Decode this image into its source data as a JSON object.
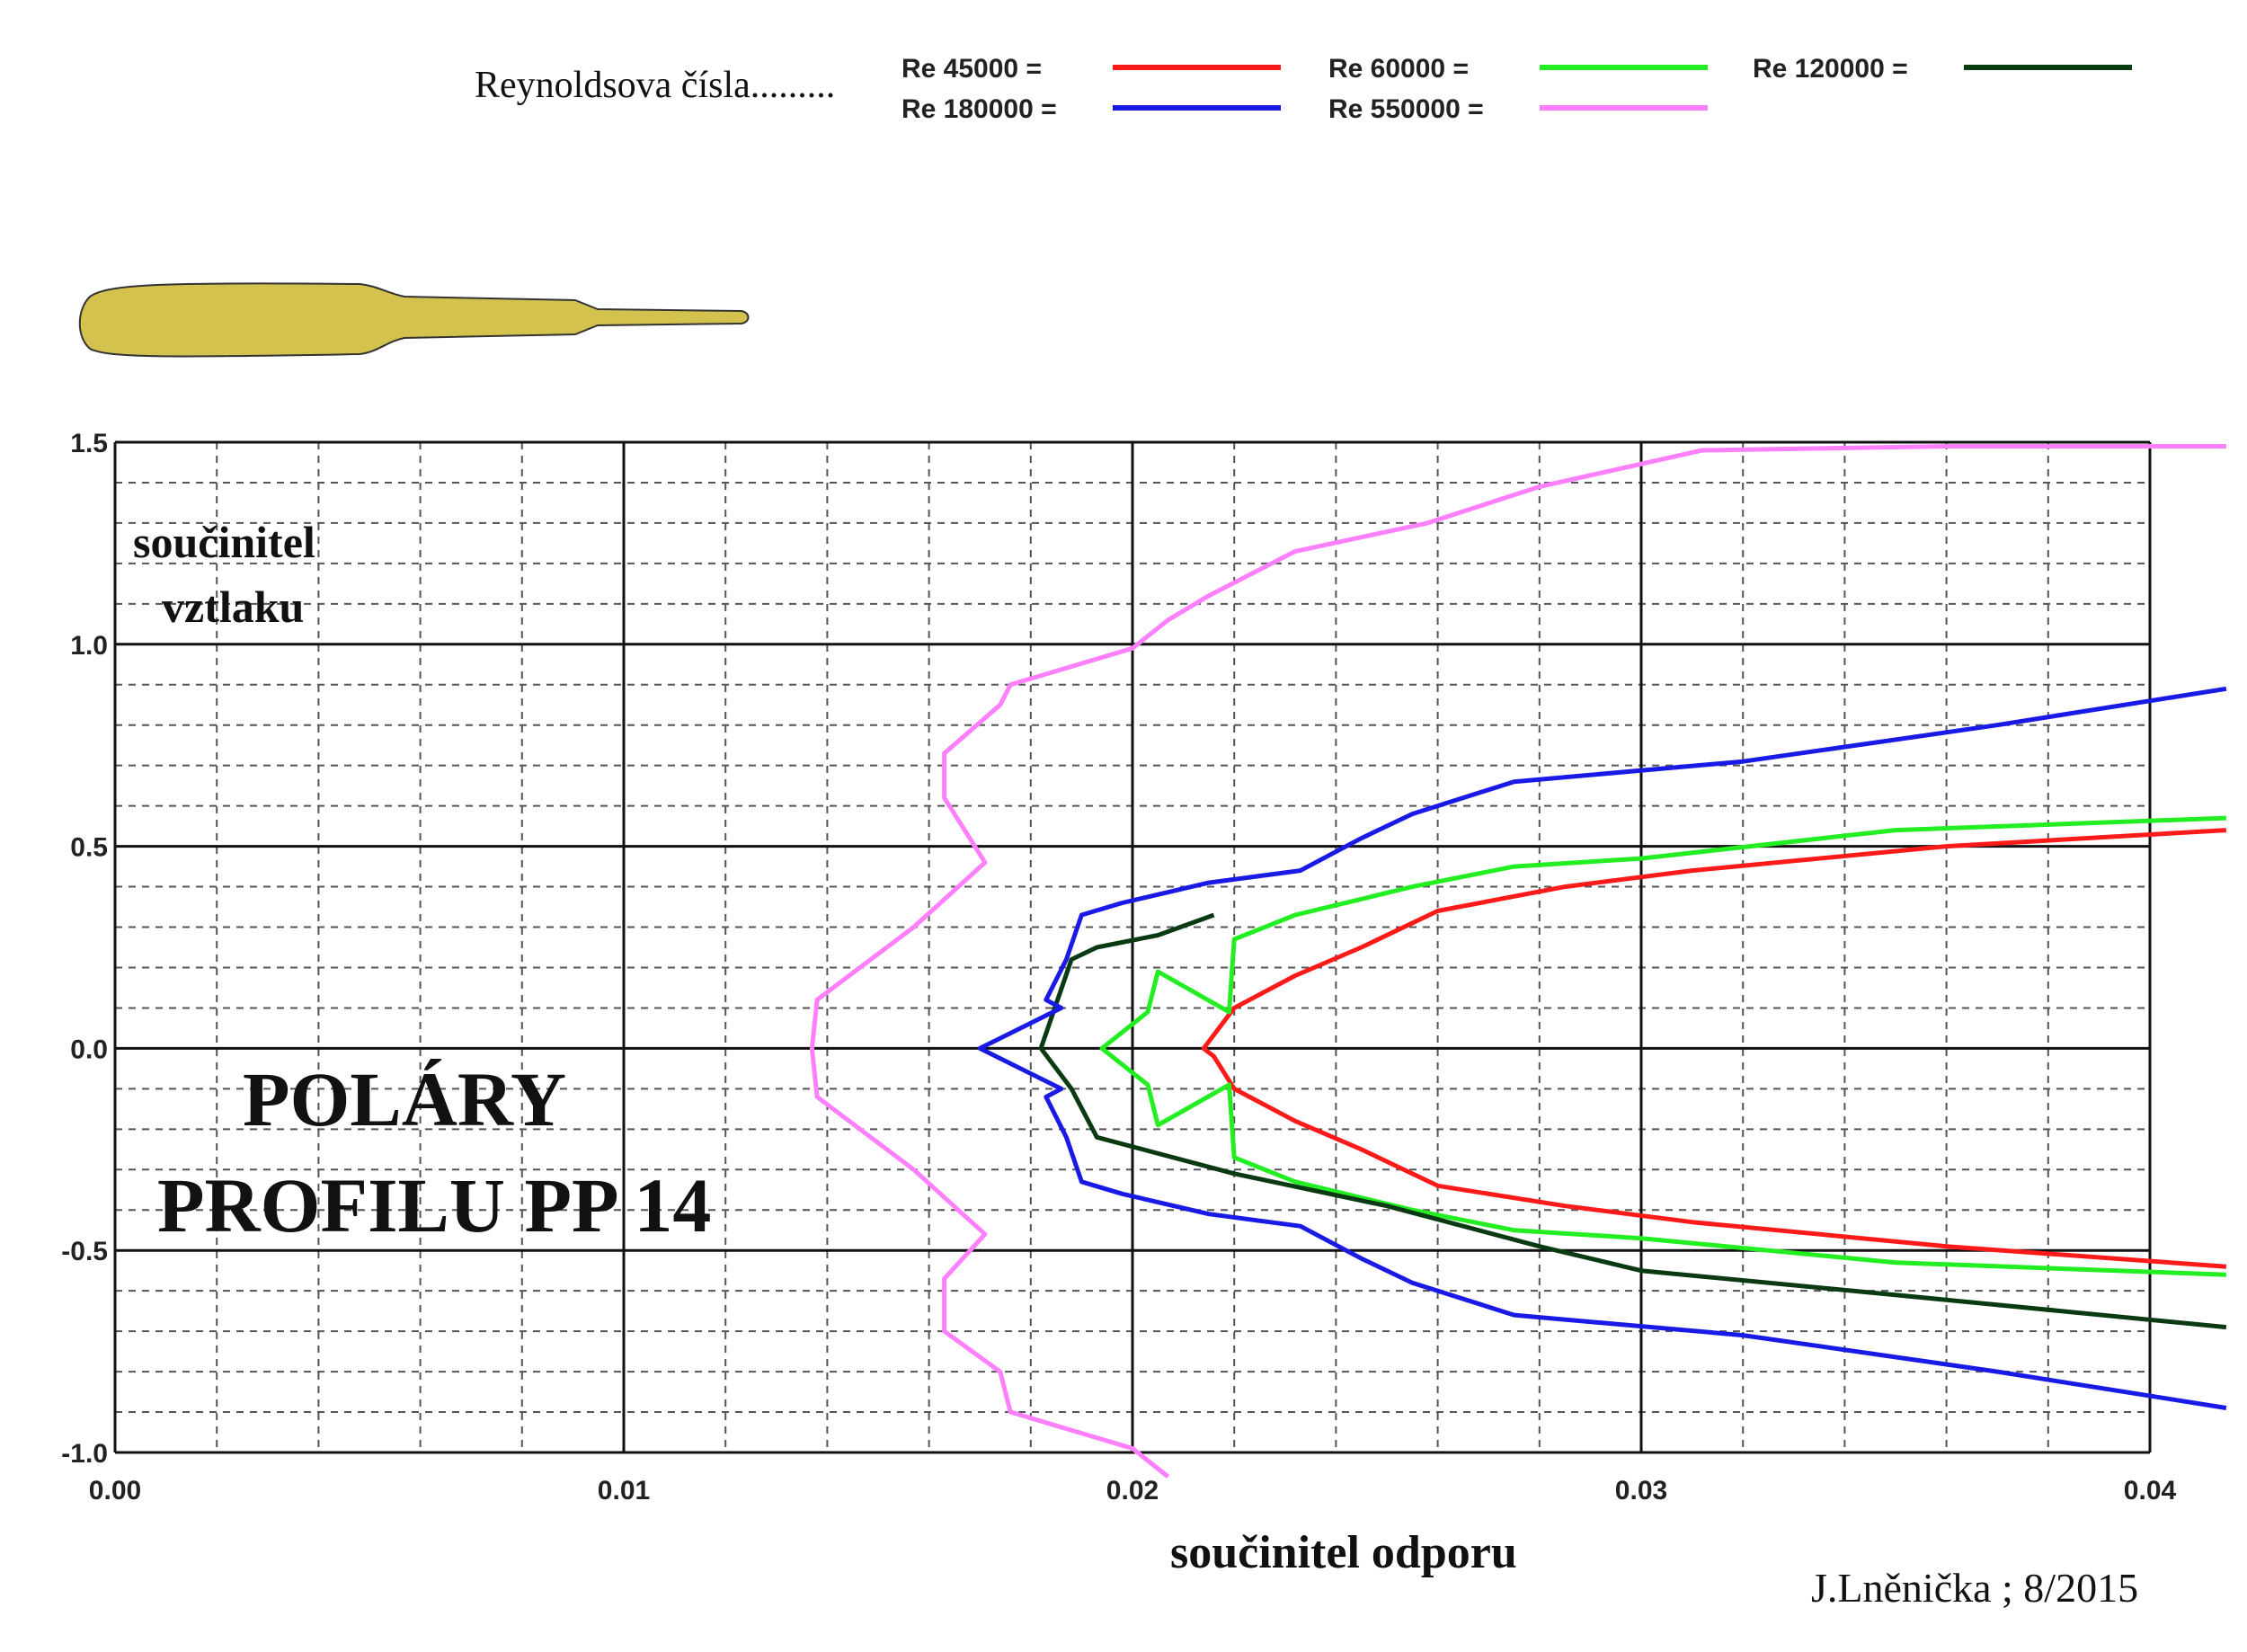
{
  "legend": {
    "heading": "Reynoldsova čísla.........",
    "entries": [
      {
        "label": "Re 45000 =",
        "color": "#ff1a1a"
      },
      {
        "label": "Re 60000 =",
        "color": "#22ee22"
      },
      {
        "label": "Re 120000 =",
        "color": "#0a3a12"
      },
      {
        "label": "Re 180000 =",
        "color": "#1a1ae6"
      },
      {
        "label": "Re 550000 =",
        "color": "#ff80ff"
      }
    ]
  },
  "title_lines": [
    "POLÁRY",
    "PROFILU  PP 14"
  ],
  "author": "J.Lněnička ; 8/2015",
  "airfoil": {
    "name": "airfoil-silhouette",
    "color": "#d4c24e"
  },
  "chart_data": {
    "type": "line",
    "xlabel": "součinitel  odporu",
    "ylabel_lines": [
      "součinitel",
      "vztlaku"
    ],
    "xlim": [
      0.0,
      0.04
    ],
    "ylim": [
      -1.0,
      1.5
    ],
    "xticks": [
      "0.00",
      "0.01",
      "0.02",
      "0.03",
      "0.04"
    ],
    "yticks": [
      "1.5",
      "1.0",
      "0.5",
      "0.0",
      "-0.5",
      "-1.0"
    ],
    "grid": true,
    "legend_position": "top",
    "series": [
      {
        "name": "Re 45000 =",
        "color": "#ff1a1a",
        "x": [
          0.0415,
          0.036,
          0.031,
          0.0285,
          0.026,
          0.0245,
          0.0232,
          0.022,
          0.0214,
          0.0216,
          0.022,
          0.0232,
          0.0245,
          0.026,
          0.0285,
          0.031,
          0.036,
          0.0415
        ],
        "y": [
          0.54,
          0.5,
          0.44,
          0.4,
          0.34,
          0.25,
          0.18,
          0.1,
          0.0,
          -0.02,
          -0.1,
          -0.18,
          -0.25,
          -0.34,
          -0.39,
          -0.43,
          -0.49,
          -0.54
        ]
      },
      {
        "name": "Re 60000 =",
        "color": "#22ee22",
        "x": [
          0.0415,
          0.035,
          0.03,
          0.0275,
          0.0255,
          0.0232,
          0.022,
          0.0219,
          0.0205,
          0.0203,
          0.0194,
          0.0203,
          0.0205,
          0.0219,
          0.022,
          0.0232,
          0.0255,
          0.0275,
          0.03,
          0.035,
          0.0415
        ],
        "y": [
          0.57,
          0.54,
          0.47,
          0.45,
          0.4,
          0.33,
          0.27,
          0.09,
          0.19,
          0.09,
          0.0,
          -0.09,
          -0.19,
          -0.09,
          -0.27,
          -0.33,
          -0.4,
          -0.45,
          -0.47,
          -0.53,
          -0.56
        ]
      },
      {
        "name": "Re 120000 =",
        "color": "#0a3a12",
        "x": [
          0.0216,
          0.0205,
          0.0193,
          0.0188,
          0.0182,
          0.0188,
          0.0193,
          0.022,
          0.025,
          0.028,
          0.03,
          0.035,
          0.0415
        ],
        "y": [
          0.33,
          0.28,
          0.25,
          0.22,
          0.0,
          -0.1,
          -0.22,
          -0.31,
          -0.39,
          -0.49,
          -0.55,
          -0.61,
          -0.69
        ]
      },
      {
        "name": "Re 180000 =",
        "color": "#1a1ae6",
        "x": [
          0.0415,
          0.037,
          0.032,
          0.0275,
          0.0255,
          0.0245,
          0.0233,
          0.0215,
          0.0198,
          0.019,
          0.0187,
          0.0183,
          0.0186,
          0.017,
          0.0186,
          0.0183,
          0.0187,
          0.019,
          0.0198,
          0.0215,
          0.0233,
          0.0245,
          0.0255,
          0.0275,
          0.032,
          0.037,
          0.0415
        ],
        "y": [
          0.89,
          0.8,
          0.71,
          0.66,
          0.58,
          0.52,
          0.44,
          0.41,
          0.36,
          0.33,
          0.22,
          0.12,
          0.1,
          0.0,
          -0.1,
          -0.12,
          -0.22,
          -0.33,
          -0.36,
          -0.41,
          -0.44,
          -0.52,
          -0.58,
          -0.66,
          -0.71,
          -0.8,
          -0.89
        ]
      },
      {
        "name": "Re 550000 =",
        "color": "#ff80ff",
        "x": [
          0.0415,
          0.036,
          0.0312,
          0.028,
          0.0258,
          0.0232,
          0.0215,
          0.0207,
          0.02,
          0.0176,
          0.0174,
          0.0163,
          0.0163,
          0.0171,
          0.0157,
          0.0138,
          0.0137,
          0.0138,
          0.0157,
          0.0171,
          0.0163,
          0.0163,
          0.0174,
          0.0176,
          0.02,
          0.0207
        ],
        "y": [
          1.49,
          1.49,
          1.48,
          1.39,
          1.3,
          1.23,
          1.12,
          1.06,
          0.99,
          0.9,
          0.85,
          0.73,
          0.62,
          0.46,
          0.3,
          0.12,
          0.0,
          -0.12,
          -0.3,
          -0.46,
          -0.57,
          -0.7,
          -0.8,
          -0.9,
          -0.99,
          -1.06
        ]
      }
    ]
  }
}
